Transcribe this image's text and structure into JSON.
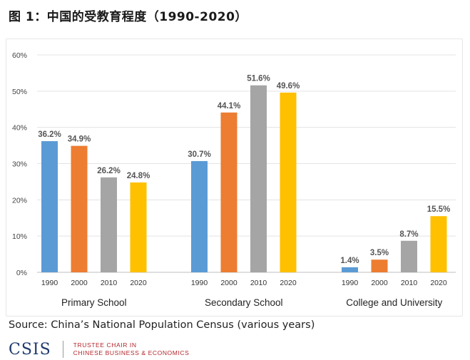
{
  "title": "图 1：中国的受教育程度（1990-2020）",
  "source": "Source: China’s National Population Census (various years)",
  "logo": {
    "name": "CSIS",
    "line1": "TRUSTEE CHAIR IN",
    "line2": "CHINESE BUSINESS & ECONOMICS"
  },
  "colors": {
    "1990": "#5b9bd5",
    "2000": "#ed7d31",
    "2010": "#a5a5a5",
    "2020": "#ffc000"
  },
  "chart_data": {
    "type": "bar",
    "ylim": [
      0,
      60
    ],
    "yticks": [
      "0%",
      "10%",
      "20%",
      "30%",
      "40%",
      "50%",
      "60%"
    ],
    "series_names": [
      "1990",
      "2000",
      "2010",
      "2020"
    ],
    "groups": [
      {
        "name": "Primary School",
        "values": [
          36.2,
          34.9,
          26.2,
          24.8
        ],
        "labels": [
          "36.2%",
          "34.9%",
          "26.2%",
          "24.8%"
        ]
      },
      {
        "name": "Secondary School",
        "values": [
          30.7,
          44.1,
          51.6,
          49.6
        ],
        "labels": [
          "30.7%",
          "44.1%",
          "51.6%",
          "49.6%"
        ]
      },
      {
        "name": "College and University",
        "values": [
          1.4,
          3.5,
          8.7,
          15.5
        ],
        "labels": [
          "1.4%",
          "3.5%",
          "8.7%",
          "15.5%"
        ]
      }
    ],
    "grid": true,
    "legend": "none"
  }
}
